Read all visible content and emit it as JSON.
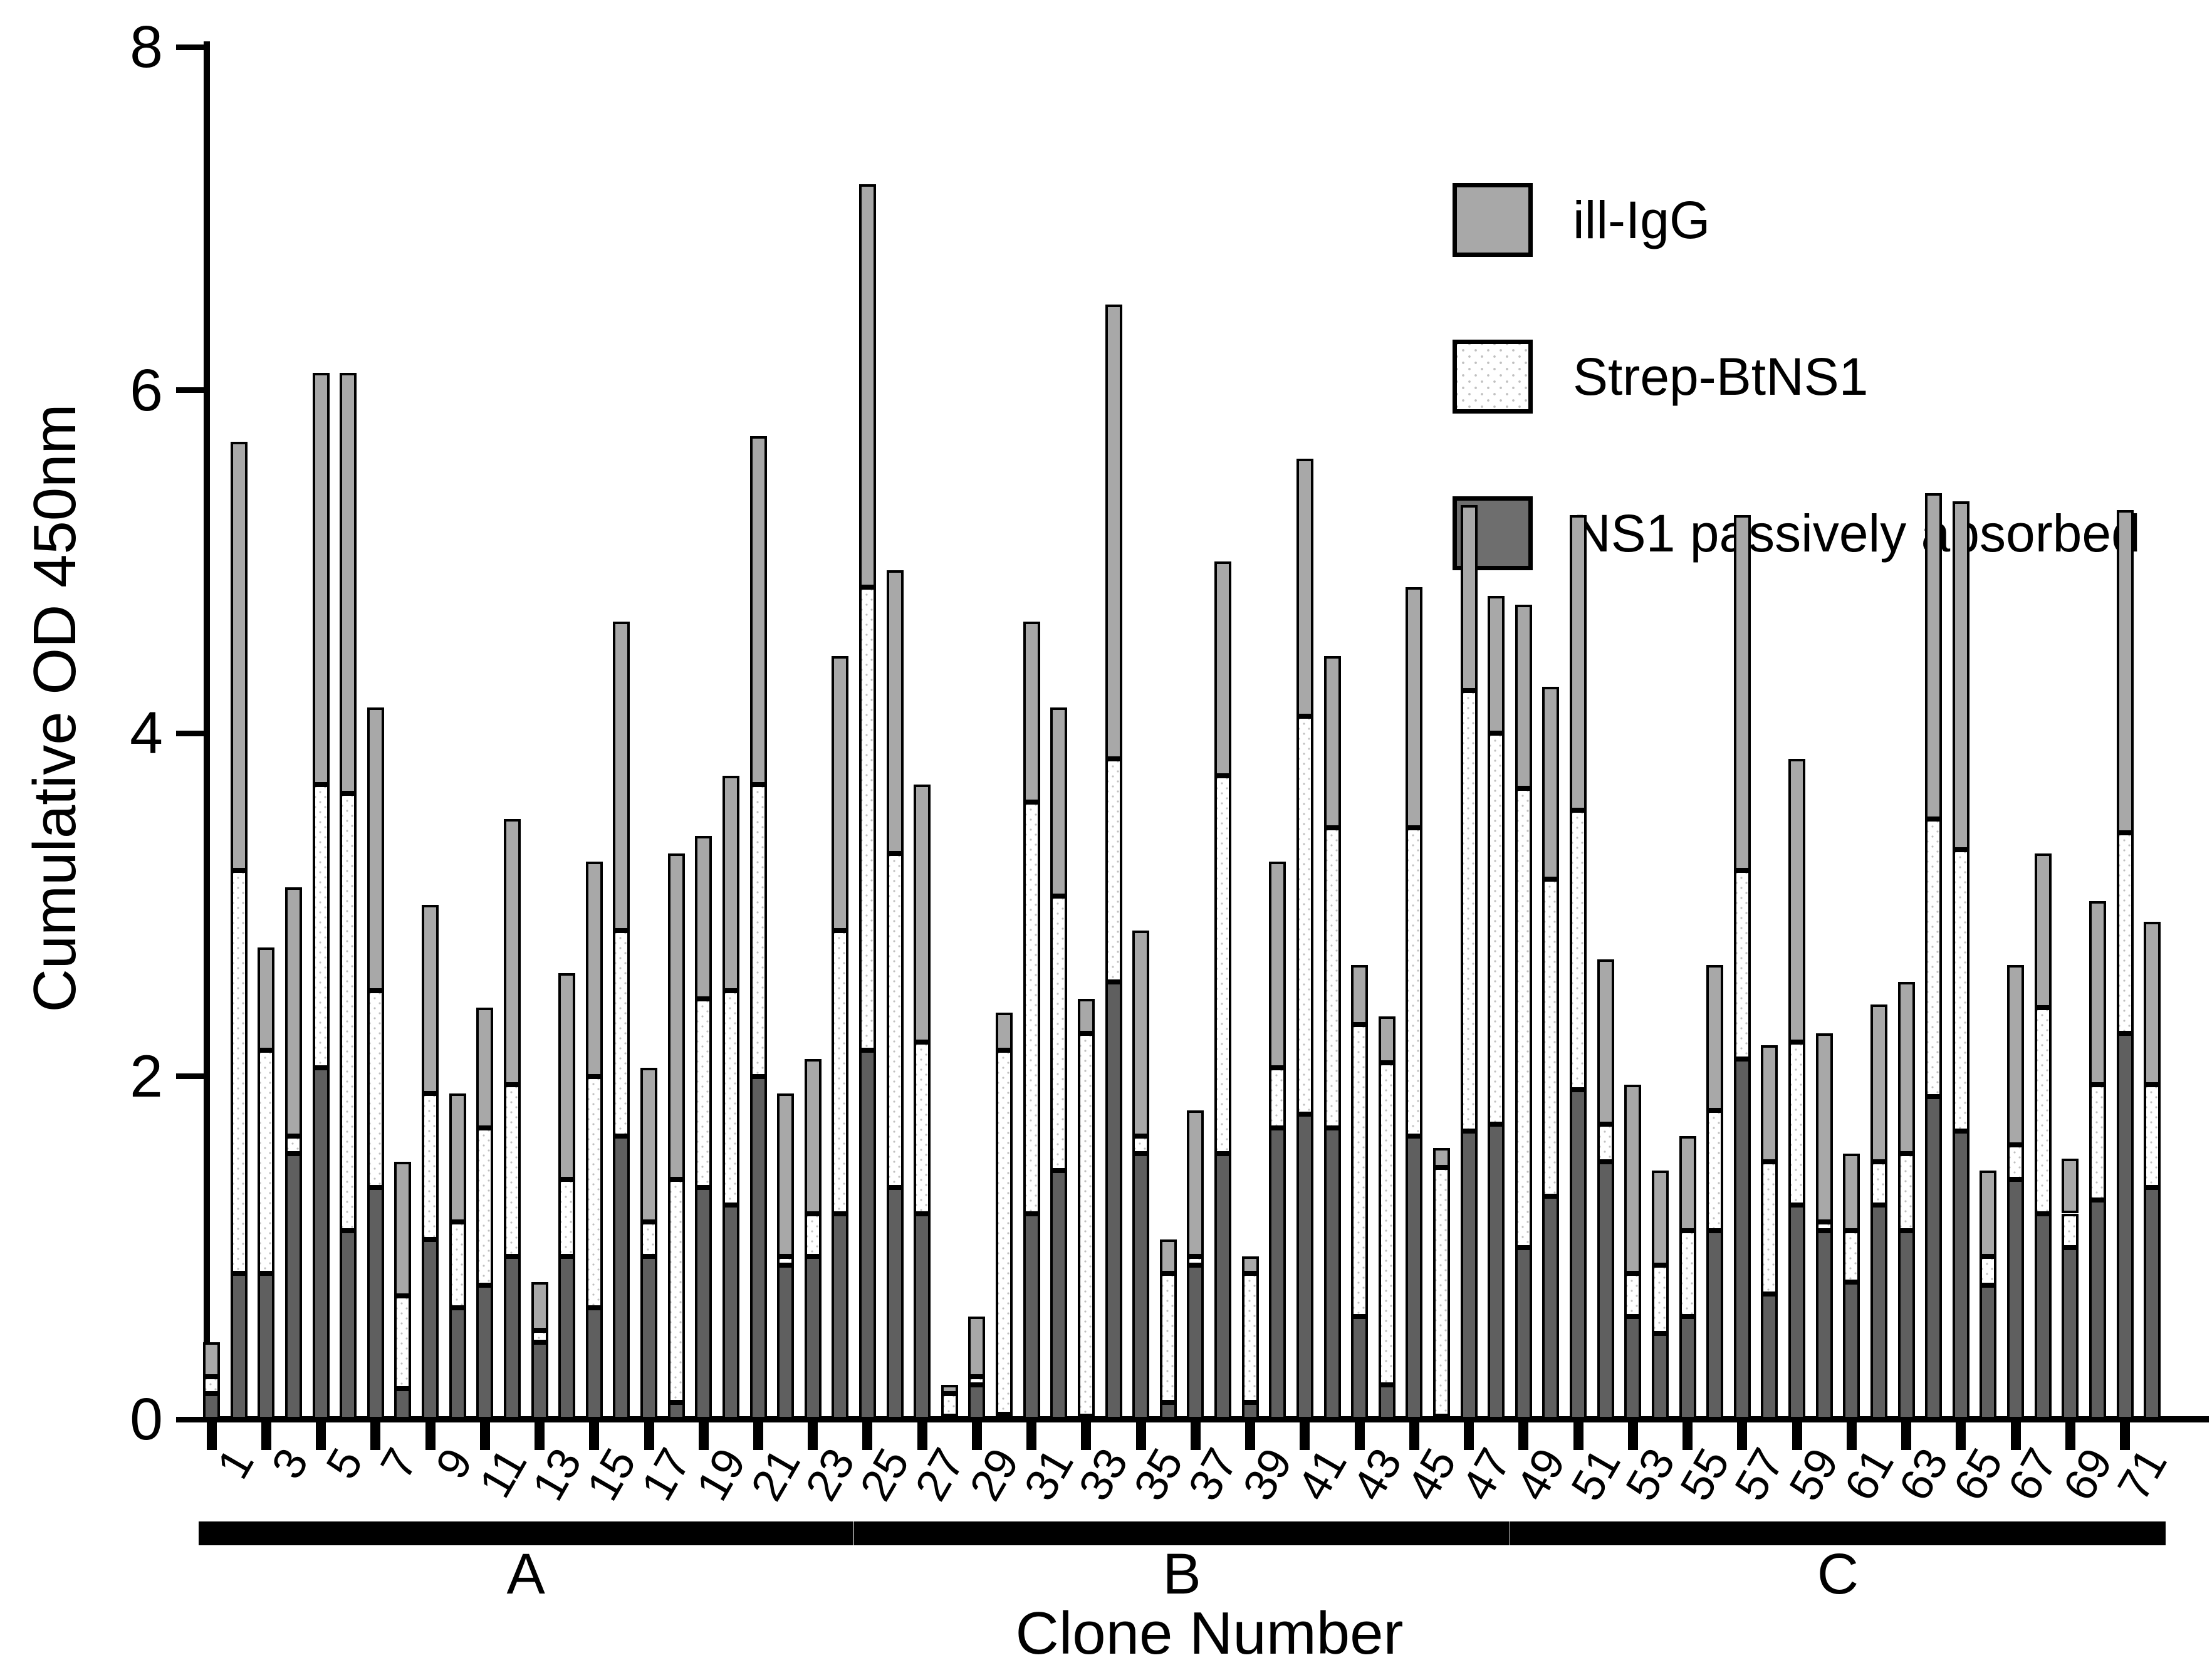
{
  "y_axis": {
    "label": "Cumulative OD 450nm",
    "ticks": [
      "0",
      "2",
      "4",
      "6",
      "8"
    ],
    "max": 8
  },
  "x_axis": {
    "label": "Clone Number",
    "tick_labels": [
      "1",
      "3",
      "5",
      "7",
      "9",
      "11",
      "13",
      "15",
      "17",
      "19",
      "21",
      "23",
      "25",
      "27",
      "29",
      "31",
      "33",
      "35",
      "37",
      "39",
      "41",
      "43",
      "45",
      "47",
      "49",
      "51",
      "53",
      "55",
      "57",
      "59",
      "61",
      "63",
      "65",
      "67",
      "69",
      "71"
    ]
  },
  "legend": {
    "items": [
      {
        "label": "ill-IgG",
        "fill": "gray"
      },
      {
        "label": "Strep-BtNS1",
        "fill": "white-dotted"
      },
      {
        "label": "NS1 passively absorbed",
        "fill": "dark-gray"
      }
    ]
  },
  "colors": {
    "ill_igg": "#a8a8a8",
    "strep_btns1": "#ffffff",
    "strep_dots": "#c0c0c0",
    "ns1": "#5f5f5f",
    "outline": "#000000"
  },
  "groups": [
    {
      "label": "A",
      "from": 1,
      "to": 24
    },
    {
      "label": "B",
      "from": 25,
      "to": 48
    },
    {
      "label": "C",
      "from": 49,
      "to": 72
    }
  ],
  "chart_data": {
    "type": "bar",
    "stacked": true,
    "title": "",
    "xlabel": "Clone Number",
    "ylabel": "Cumulative OD 450nm",
    "ylim": [
      0,
      8
    ],
    "grid": false,
    "legend_position": "upper right",
    "categories": [
      1,
      2,
      3,
      4,
      5,
      6,
      7,
      8,
      9,
      10,
      11,
      12,
      13,
      14,
      15,
      16,
      17,
      18,
      19,
      20,
      21,
      22,
      23,
      24,
      25,
      26,
      27,
      28,
      29,
      30,
      31,
      32,
      33,
      34,
      35,
      36,
      37,
      38,
      39,
      40,
      41,
      42,
      43,
      44,
      45,
      46,
      47,
      48,
      49,
      50,
      51,
      52,
      53,
      54,
      55,
      56,
      57,
      58,
      59,
      60,
      61,
      62,
      63,
      64,
      65,
      66,
      67,
      68,
      69,
      70,
      71,
      72
    ],
    "series": [
      {
        "name": "NS1 passively absorbed",
        "values": [
          0.15,
          0.85,
          0.85,
          1.55,
          2.05,
          1.1,
          1.35,
          0.18,
          1.05,
          0.65,
          0.78,
          0.95,
          0.45,
          0.95,
          0.65,
          1.65,
          0.95,
          0.1,
          1.35,
          1.25,
          2.0,
          0.9,
          0.95,
          1.2,
          2.15,
          1.35,
          1.2,
          0.02,
          0.2,
          0.03,
          1.2,
          1.45,
          0.02,
          2.55,
          1.55,
          0.1,
          0.9,
          1.55,
          0.1,
          1.7,
          1.78,
          1.7,
          0.6,
          0.2,
          1.65,
          0.02,
          1.68,
          1.72,
          1.0,
          1.3,
          1.92,
          1.5,
          0.6,
          0.5,
          0.6,
          1.1,
          2.1,
          0.73,
          1.25,
          1.1,
          0.8,
          1.25,
          1.1,
          1.88,
          1.68,
          0.78,
          1.4,
          1.2,
          1.0,
          1.28,
          2.25,
          1.35
        ]
      },
      {
        "name": "Strep-BtNS1",
        "values": [
          0.1,
          2.35,
          1.3,
          0.1,
          1.65,
          2.55,
          1.15,
          0.54,
          0.85,
          0.5,
          0.92,
          1.0,
          0.07,
          0.45,
          1.35,
          1.2,
          0.2,
          1.3,
          1.1,
          1.25,
          1.7,
          0.05,
          0.25,
          1.65,
          2.7,
          1.95,
          1.0,
          0.13,
          0.05,
          2.12,
          2.4,
          1.6,
          2.23,
          1.3,
          0.1,
          0.75,
          0.05,
          2.2,
          0.75,
          0.35,
          2.32,
          1.75,
          1.7,
          1.88,
          1.8,
          1.45,
          2.57,
          2.28,
          2.68,
          1.85,
          1.63,
          0.22,
          0.25,
          0.4,
          0.5,
          0.7,
          1.1,
          0.77,
          0.95,
          0.05,
          0.3,
          0.25,
          0.45,
          1.62,
          1.64,
          0.17,
          0.2,
          1.2,
          0.2,
          0.67,
          1.17,
          0.6
        ]
      },
      {
        "name": "ill-IgG",
        "values": [
          0.2,
          2.5,
          0.6,
          1.45,
          2.4,
          2.45,
          1.65,
          0.78,
          1.1,
          0.75,
          0.7,
          1.55,
          0.28,
          1.2,
          1.25,
          1.8,
          0.9,
          1.9,
          0.95,
          1.25,
          2.03,
          0.95,
          0.9,
          1.6,
          2.35,
          1.65,
          1.5,
          0.05,
          0.35,
          0.22,
          1.05,
          1.1,
          0.2,
          2.65,
          1.2,
          0.2,
          0.85,
          1.25,
          0.1,
          1.2,
          1.5,
          1.0,
          0.35,
          0.27,
          1.4,
          0.11,
          1.08,
          0.8,
          1.07,
          1.12,
          1.72,
          0.96,
          1.1,
          0.55,
          0.55,
          0.85,
          2.07,
          0.68,
          1.65,
          1.1,
          0.45,
          0.92,
          1.0,
          1.9,
          2.03,
          0.5,
          1.05,
          0.9,
          0.32,
          1.07,
          1.88,
          0.95
        ]
      }
    ]
  }
}
